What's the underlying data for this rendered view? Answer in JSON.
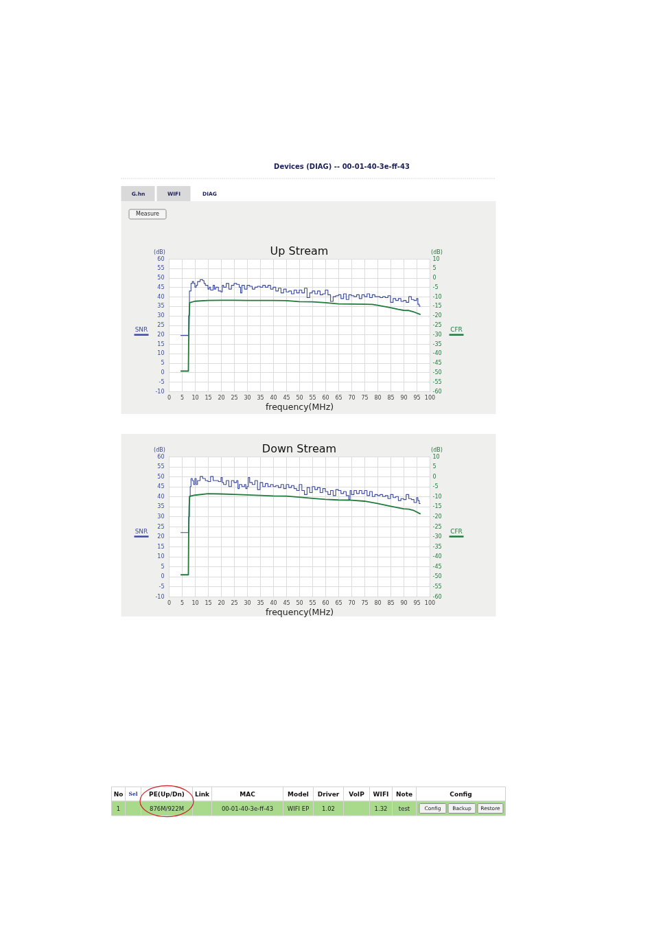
{
  "chart_data": [
    {
      "type": "other",
      "title": "Devices (DIAG) -- 00-01-40-3e-ff-43",
      "annotations": [
        "G.hn",
        "WIFI",
        "DIAG",
        "Measure"
      ]
    },
    {
      "type": "line",
      "title": "Up Stream",
      "xlabel": "frequency(MHz)",
      "ylabel": "(dB)",
      "y2label": "(dB)",
      "xlim": [
        0,
        100
      ],
      "ylim": [
        -10,
        60
      ],
      "y2lim": [
        -60,
        10
      ],
      "xticks": [
        0,
        5,
        10,
        15,
        20,
        25,
        30,
        35,
        40,
        45,
        50,
        55,
        60,
        65,
        70,
        75,
        80,
        85,
        90,
        95,
        100
      ],
      "yticks": [
        -10,
        -5,
        0,
        5,
        10,
        15,
        20,
        25,
        30,
        35,
        40,
        45,
        50,
        55,
        60
      ],
      "y2ticks": [
        -60,
        -55,
        -50,
        -45,
        -40,
        -35,
        -30,
        -25,
        -20,
        -15,
        -10,
        -5,
        0,
        5,
        10
      ],
      "grid": true,
      "series": [
        {
          "name": "SNR",
          "type": "step",
          "color": "#3a4a9f",
          "x": [
            4.5,
            7.6,
            7.9,
            8.5,
            9,
            9.5,
            10,
            10.5,
            11,
            12,
            13,
            13.5,
            14,
            15,
            15.5,
            16,
            17,
            17.5,
            18,
            19,
            20,
            20.5,
            21,
            22,
            23,
            24,
            25,
            26,
            27,
            27.5,
            28,
            29,
            30,
            31,
            32,
            33,
            34,
            35,
            36,
            37,
            38,
            39,
            40,
            41,
            42,
            43,
            44,
            45,
            46,
            47,
            48,
            49,
            50,
            51,
            52,
            53,
            54,
            55,
            56,
            57,
            58,
            59,
            60,
            61,
            62,
            63,
            64,
            65,
            66,
            67,
            68,
            69,
            70,
            71,
            72,
            73,
            74,
            75,
            76,
            77,
            78,
            79,
            81,
            82,
            83,
            84,
            85,
            86,
            87,
            88,
            89,
            90,
            91,
            92,
            93,
            94,
            95,
            95.5,
            96,
            96.5
          ],
          "values": [
            19.5,
            30,
            43,
            47,
            48,
            47,
            45,
            46,
            48,
            49,
            48.5,
            47,
            46,
            44,
            45,
            43.5,
            46,
            44,
            45,
            43,
            42.5,
            46,
            45,
            47,
            44,
            46,
            47,
            46.5,
            45,
            42,
            46,
            44,
            46,
            45.5,
            44,
            45,
            45.5,
            45,
            46,
            45,
            46,
            44,
            45,
            43,
            44.5,
            42,
            44,
            42.5,
            43,
            41.5,
            43.5,
            42,
            43.5,
            42,
            44.5,
            39.5,
            42,
            43,
            41.5,
            43,
            41,
            41.5,
            43.5,
            41,
            37.5,
            40,
            40.5,
            41,
            39,
            41.5,
            38.5,
            41,
            40.5,
            40,
            41,
            39,
            41,
            40,
            41.5,
            39.5,
            41,
            40,
            39.5,
            40,
            39.5,
            40.5,
            37,
            39,
            38,
            39,
            37.5,
            38,
            37,
            40,
            38.5,
            38,
            39,
            36,
            35,
            35
          ]
        },
        {
          "name": "CFR",
          "type": "line",
          "axis": "y2",
          "color": "#1f7a3c",
          "x": [
            4.5,
            7.5,
            7.6,
            7.8,
            8,
            10,
            15,
            20,
            25,
            30,
            35,
            40,
            45,
            50,
            55,
            60,
            65,
            70,
            75,
            78,
            80,
            85,
            88,
            90,
            92,
            94,
            96.5
          ],
          "values": [
            -49.3,
            -49.3,
            -35,
            -20,
            -13.2,
            -12.4,
            -12,
            -11.9,
            -11.9,
            -12,
            -12,
            -12,
            -12.1,
            -12.6,
            -12.7,
            -13.2,
            -13.8,
            -13.9,
            -14,
            -14.1,
            -14.5,
            -15.8,
            -16.7,
            -17.2,
            -17.3,
            -18.1,
            -19.4
          ]
        }
      ]
    },
    {
      "type": "line",
      "title": "Down Stream",
      "xlabel": "frequency(MHz)",
      "ylabel": "(dB)",
      "y2label": "(dB)",
      "xlim": [
        0,
        100
      ],
      "ylim": [
        -10,
        60
      ],
      "y2lim": [
        -60,
        10
      ],
      "xticks": [
        0,
        5,
        10,
        15,
        20,
        25,
        30,
        35,
        40,
        45,
        50,
        55,
        60,
        65,
        70,
        75,
        80,
        85,
        90,
        95,
        100
      ],
      "yticks": [
        -10,
        -5,
        0,
        5,
        10,
        15,
        20,
        25,
        30,
        35,
        40,
        45,
        50,
        55,
        60
      ],
      "y2ticks": [
        -60,
        -55,
        -50,
        -45,
        -40,
        -35,
        -30,
        -25,
        -20,
        -15,
        -10,
        -5,
        0,
        5,
        10
      ],
      "grid": true,
      "series": [
        {
          "name": "SNR",
          "type": "step",
          "color": "#3a4a9f",
          "x": [
            4.5,
            7.6,
            7.9,
            8.2,
            8.5,
            9,
            9.5,
            10,
            10.5,
            11,
            12,
            13,
            14,
            15,
            16,
            17,
            18,
            19,
            20,
            20.5,
            21,
            22,
            23,
            24,
            25,
            26,
            26.5,
            27,
            28,
            29,
            29.5,
            30,
            30.5,
            31,
            32,
            33,
            34,
            35,
            36,
            37,
            38,
            39,
            40,
            41,
            42,
            43,
            44,
            45,
            46,
            47,
            48,
            49,
            50,
            51,
            52,
            53,
            54,
            55,
            56,
            57,
            58,
            59,
            60,
            61,
            62,
            63,
            64,
            65,
            66,
            67,
            68,
            69,
            69.5,
            70,
            71,
            72,
            73,
            74,
            75,
            76,
            77,
            78,
            79,
            80,
            81,
            82,
            83,
            84,
            85,
            86,
            87,
            88,
            89,
            90,
            91,
            92,
            93,
            94,
            95,
            95.5,
            96,
            96.5
          ],
          "values": [
            22,
            30,
            40,
            45,
            49,
            48,
            46,
            49,
            46,
            48,
            50,
            49,
            48,
            47.5,
            50,
            48,
            48,
            47.5,
            49.5,
            47,
            46,
            48,
            45,
            48,
            47,
            48,
            44,
            46,
            45,
            46,
            44,
            45,
            49.5,
            47,
            46,
            48,
            43.5,
            47,
            45,
            46.5,
            45,
            46,
            45,
            45.5,
            44.5,
            46,
            44,
            46,
            44.5,
            45.5,
            44,
            43,
            46,
            43,
            41,
            44.5,
            42,
            45,
            43.5,
            44.5,
            42,
            44,
            42.5,
            41,
            43,
            40.5,
            43.5,
            43,
            41.5,
            42.5,
            40.5,
            38.5,
            43,
            41,
            43,
            41.5,
            43,
            41.5,
            43,
            40.5,
            42.5,
            40,
            41,
            40.5,
            41,
            40,
            40.5,
            39,
            41,
            39.5,
            40,
            38,
            39,
            38.5,
            41,
            39,
            38.5,
            37,
            39.5,
            38,
            36.5,
            36.5
          ]
        },
        {
          "name": "CFR",
          "type": "line",
          "axis": "y2",
          "color": "#1f7a3c",
          "x": [
            4.5,
            7.5,
            7.6,
            7.8,
            8,
            10,
            15,
            20,
            25,
            30,
            35,
            40,
            45,
            50,
            55,
            60,
            65,
            70,
            75,
            80,
            85,
            88,
            90,
            92,
            94,
            96.5
          ],
          "values": [
            -49.1,
            -49.1,
            -30,
            -15,
            -9.9,
            -9.3,
            -8.6,
            -8.7,
            -8.9,
            -9.2,
            -9.4,
            -9.7,
            -9.8,
            -10.3,
            -10.9,
            -11.4,
            -11.7,
            -11.8,
            -12.3,
            -13.5,
            -14.8,
            -15.6,
            -16.1,
            -16.3,
            -17,
            -18.7
          ]
        }
      ]
    },
    {
      "type": "other",
      "categories": [
        "No",
        "Sel",
        "PE(Up/Dn)",
        "Link",
        "MAC",
        "Model",
        "Driver",
        "VoIP",
        "WIFI",
        "Note",
        "Config"
      ],
      "annotations": [
        "1",
        "876M/922M",
        "00-01-40-3e-ff-43",
        "WIFI EP",
        "1.02",
        "1.32",
        "test",
        "Config",
        "Backup",
        "Restore"
      ]
    }
  ]
}
